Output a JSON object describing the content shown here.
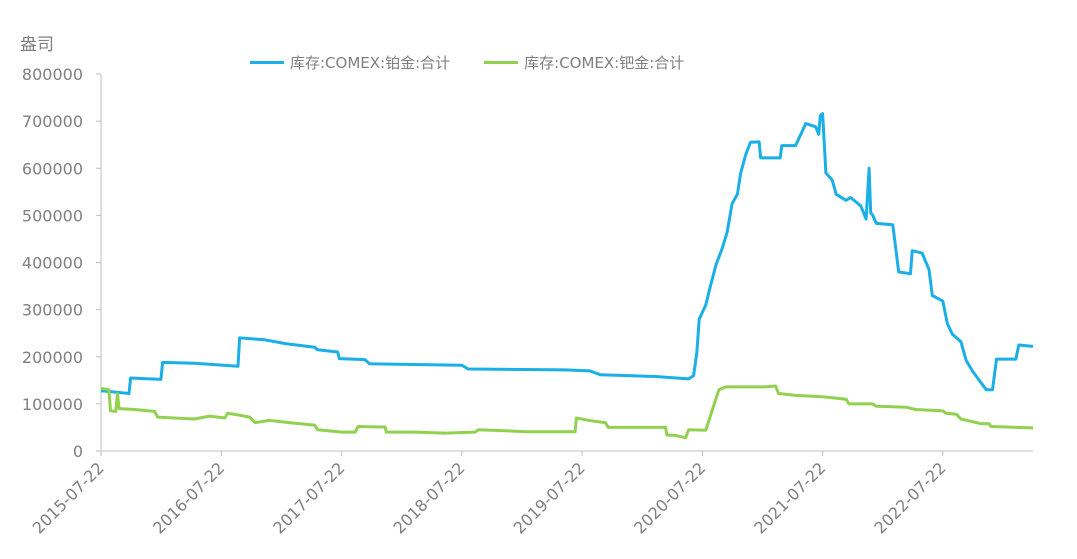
{
  "chart_data": {
    "type": "line",
    "ylabel": "盎司",
    "ylim": [
      0,
      800000
    ],
    "yticks": [
      0,
      100000,
      200000,
      300000,
      400000,
      500000,
      600000,
      700000,
      800000
    ],
    "xlim": [
      "2015-07-22",
      "2023-04-22"
    ],
    "xticks": [
      "2015-07-22",
      "2016-07-22",
      "2017-07-22",
      "2018-07-22",
      "2019-07-22",
      "2020-07-22",
      "2021-07-22",
      "2022-07-22"
    ],
    "grid": false,
    "legend": "top-center",
    "series": [
      {
        "name": "库存:COMEX:铂金:合计",
        "color": "#1aafe6",
        "points": [
          [
            "2015-07-22",
            128000
          ],
          [
            "2015-10-15",
            122000
          ],
          [
            "2015-10-20",
            155000
          ],
          [
            "2016-01-20",
            152000
          ],
          [
            "2016-01-25",
            188000
          ],
          [
            "2016-05-01",
            186000
          ],
          [
            "2016-09-10",
            180000
          ],
          [
            "2016-09-15",
            240000
          ],
          [
            "2016-12-01",
            236000
          ],
          [
            "2017-02-01",
            228000
          ],
          [
            "2017-05-01",
            220000
          ],
          [
            "2017-05-10",
            215000
          ],
          [
            "2017-07-10",
            210000
          ],
          [
            "2017-07-15",
            196000
          ],
          [
            "2017-10-01",
            194000
          ],
          [
            "2017-10-15",
            185000
          ],
          [
            "2018-07-22",
            182000
          ],
          [
            "2018-08-10",
            174000
          ],
          [
            "2019-06-01",
            172000
          ],
          [
            "2019-08-15",
            170000
          ],
          [
            "2019-09-15",
            162000
          ],
          [
            "2020-03-01",
            158000
          ],
          [
            "2020-06-10",
            153000
          ],
          [
            "2020-06-25",
            160000
          ],
          [
            "2020-07-05",
            210000
          ],
          [
            "2020-07-12",
            280000
          ],
          [
            "2020-08-01",
            310000
          ],
          [
            "2020-08-15",
            350000
          ],
          [
            "2020-09-01",
            395000
          ],
          [
            "2020-09-20",
            430000
          ],
          [
            "2020-10-05",
            465000
          ],
          [
            "2020-10-20",
            525000
          ],
          [
            "2020-11-05",
            545000
          ],
          [
            "2020-11-15",
            590000
          ],
          [
            "2020-12-01",
            630000
          ],
          [
            "2020-12-15",
            655000
          ],
          [
            "2021-01-10",
            656000
          ],
          [
            "2021-01-15",
            622000
          ],
          [
            "2021-03-15",
            622000
          ],
          [
            "2021-03-20",
            648000
          ],
          [
            "2021-05-01",
            648000
          ],
          [
            "2021-06-01",
            695000
          ],
          [
            "2021-07-01",
            688000
          ],
          [
            "2021-07-10",
            672000
          ],
          [
            "2021-07-15",
            712000
          ],
          [
            "2021-07-22",
            716000
          ],
          [
            "2021-08-01",
            590000
          ],
          [
            "2021-08-20",
            575000
          ],
          [
            "2021-09-01",
            545000
          ],
          [
            "2021-10-01",
            532000
          ],
          [
            "2021-10-15",
            538000
          ],
          [
            "2021-11-15",
            520000
          ],
          [
            "2021-12-01",
            492000
          ],
          [
            "2021-12-10",
            600000
          ],
          [
            "2021-12-15",
            505000
          ],
          [
            "2021-12-20",
            502000
          ],
          [
            "2022-01-01",
            483000
          ],
          [
            "2022-02-20",
            480000
          ],
          [
            "2022-03-10",
            380000
          ],
          [
            "2022-04-15",
            376000
          ],
          [
            "2022-04-20",
            425000
          ],
          [
            "2022-05-20",
            420000
          ],
          [
            "2022-06-10",
            385000
          ],
          [
            "2022-06-20",
            330000
          ],
          [
            "2022-07-22",
            318000
          ],
          [
            "2022-08-05",
            270000
          ],
          [
            "2022-08-20",
            248000
          ],
          [
            "2022-09-15",
            232000
          ],
          [
            "2022-10-01",
            192000
          ],
          [
            "2022-10-20",
            170000
          ],
          [
            "2022-11-15",
            145000
          ],
          [
            "2022-12-01",
            130000
          ],
          [
            "2022-12-20",
            130000
          ],
          [
            "2023-01-01",
            195000
          ],
          [
            "2023-03-01",
            195000
          ],
          [
            "2023-03-10",
            225000
          ],
          [
            "2023-04-22",
            222000
          ]
        ]
      },
      {
        "name": "库存:COMEX:钯金:合计",
        "color": "#92d050",
        "points": [
          [
            "2015-07-22",
            133000
          ],
          [
            "2015-08-15",
            130000
          ],
          [
            "2015-08-20",
            85000
          ],
          [
            "2015-09-05",
            84000
          ],
          [
            "2015-09-10",
            122000
          ],
          [
            "2015-09-15",
            90000
          ],
          [
            "2015-11-01",
            88000
          ],
          [
            "2016-01-01",
            84000
          ],
          [
            "2016-01-10",
            72000
          ],
          [
            "2016-03-01",
            70000
          ],
          [
            "2016-05-01",
            68000
          ],
          [
            "2016-06-15",
            74000
          ],
          [
            "2016-08-01",
            70000
          ],
          [
            "2016-08-10",
            80000
          ],
          [
            "2016-09-15",
            76000
          ],
          [
            "2016-10-15",
            72000
          ],
          [
            "2016-11-01",
            60000
          ],
          [
            "2016-12-15",
            65000
          ],
          [
            "2017-02-15",
            60000
          ],
          [
            "2017-05-01",
            55000
          ],
          [
            "2017-05-10",
            45000
          ],
          [
            "2017-07-22",
            40000
          ],
          [
            "2017-09-01",
            40000
          ],
          [
            "2017-09-10",
            52000
          ],
          [
            "2017-12-01",
            51000
          ],
          [
            "2017-12-05",
            40000
          ],
          [
            "2018-03-01",
            40000
          ],
          [
            "2018-06-01",
            38000
          ],
          [
            "2018-09-01",
            40000
          ],
          [
            "2018-09-10",
            45000
          ],
          [
            "2018-12-01",
            43000
          ],
          [
            "2019-02-01",
            41000
          ],
          [
            "2019-07-01",
            41000
          ],
          [
            "2019-07-05",
            70000
          ],
          [
            "2019-08-20",
            64000
          ],
          [
            "2019-10-01",
            60000
          ],
          [
            "2019-10-10",
            50000
          ],
          [
            "2020-01-01",
            50000
          ],
          [
            "2020-04-01",
            50000
          ],
          [
            "2020-04-05",
            34000
          ],
          [
            "2020-05-01",
            33000
          ],
          [
            "2020-06-01",
            28000
          ],
          [
            "2020-06-10",
            45000
          ],
          [
            "2020-08-01",
            44000
          ],
          [
            "2020-08-20",
            85000
          ],
          [
            "2020-09-10",
            130000
          ],
          [
            "2020-10-01",
            136000
          ],
          [
            "2021-02-01",
            136000
          ],
          [
            "2021-03-01",
            138000
          ],
          [
            "2021-03-10",
            122000
          ],
          [
            "2021-05-01",
            118000
          ],
          [
            "2021-06-01",
            117000
          ],
          [
            "2021-07-22",
            115000
          ],
          [
            "2021-10-01",
            110000
          ],
          [
            "2021-10-10",
            100000
          ],
          [
            "2021-12-20",
            100000
          ],
          [
            "2022-01-01",
            95000
          ],
          [
            "2022-04-01",
            93000
          ],
          [
            "2022-05-01",
            88000
          ],
          [
            "2022-07-22",
            85000
          ],
          [
            "2022-08-01",
            80000
          ],
          [
            "2022-09-01",
            78000
          ],
          [
            "2022-09-15",
            68000
          ],
          [
            "2022-10-15",
            63000
          ],
          [
            "2022-11-15",
            58000
          ],
          [
            "2022-12-10",
            58000
          ],
          [
            "2022-12-15",
            52000
          ],
          [
            "2023-02-01",
            51000
          ],
          [
            "2023-04-22",
            49000
          ]
        ]
      }
    ]
  }
}
